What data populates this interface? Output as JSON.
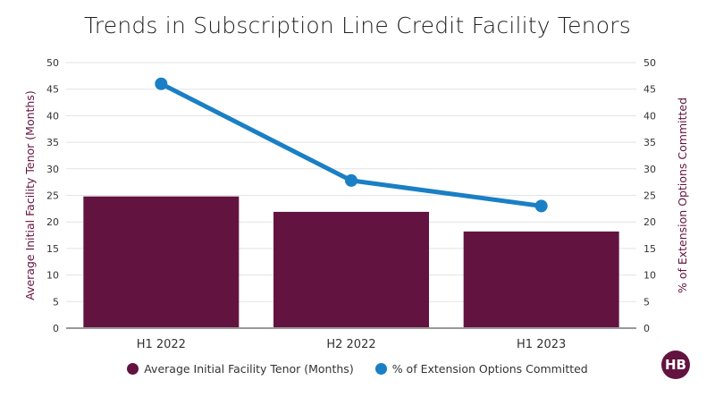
{
  "chart_data": {
    "type": "bar+line",
    "title": "Trends in Subscription Line Credit Facility Tenors",
    "categories": [
      "H1 2022",
      "H2 2022",
      "H1 2023"
    ],
    "series": [
      {
        "name": "Average Initial Facility Tenor (Months)",
        "type": "bar",
        "axis": "left",
        "color": "#63133f",
        "values": [
          24.8,
          21.9,
          18.2
        ]
      },
      {
        "name": "% of Extension Options Committed",
        "type": "line",
        "axis": "right",
        "color": "#1a7fc4",
        "values": [
          46,
          27.8,
          23
        ]
      }
    ],
    "ylabel_left": "Average Initial Facility Tenor (Months)",
    "ylabel_right": "% of Extension Options Committed",
    "ylim": [
      0,
      50
    ],
    "yticks": [
      0,
      5,
      10,
      15,
      20,
      25,
      30,
      35,
      40,
      45,
      50
    ],
    "grid": true,
    "legend": "bottom"
  },
  "logo": {
    "text": "HB",
    "color": "#63133f"
  }
}
